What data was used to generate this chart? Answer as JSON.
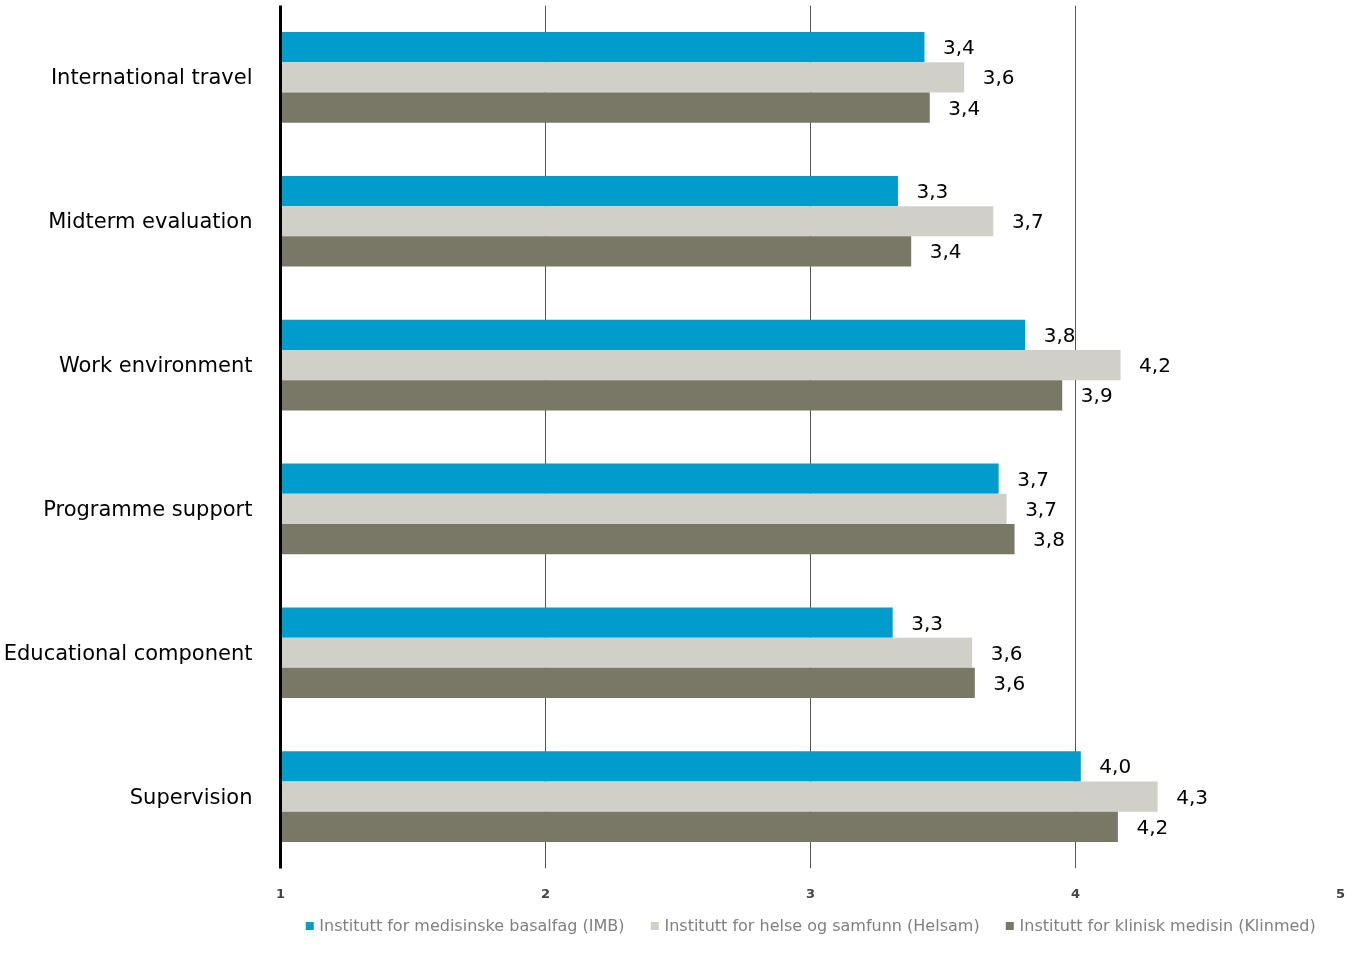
{
  "chart_data": {
    "type": "bar",
    "orientation": "horizontal",
    "categories": [
      "International travel",
      "Midterm evaluation",
      "Work environment",
      "Programme support",
      "Educational component",
      "Supervision"
    ],
    "series": [
      {
        "name": "Institutt for medisinske basalfag (IMB)",
        "color": "#009ccc",
        "values": [
          3.43,
          3.33,
          3.81,
          3.71,
          3.31,
          4.02
        ],
        "value_labels": [
          "3,4",
          "3,3",
          "3,8",
          "3,7",
          "3,3",
          "4,0"
        ]
      },
      {
        "name": "Institutt for helse og samfunn (Helsam)",
        "color": "#d0d0c8",
        "values": [
          3.58,
          3.69,
          4.17,
          3.74,
          3.61,
          4.31
        ],
        "value_labels": [
          "3,6",
          "3,7",
          "4,2",
          "3,7",
          "3,6",
          "4,3"
        ]
      },
      {
        "name": "Institutt for klinisk medisin (Klinmed)",
        "color": "#797766",
        "values": [
          3.45,
          3.38,
          3.95,
          3.77,
          3.62,
          4.16
        ],
        "value_labels": [
          "3,4",
          "3,4",
          "3,9",
          "3,8",
          "3,6",
          "4,2"
        ]
      }
    ],
    "xlim": [
      1,
      5
    ],
    "xticks": [
      1,
      2,
      3,
      4,
      5
    ],
    "grid": "x",
    "legend": "bottom"
  }
}
